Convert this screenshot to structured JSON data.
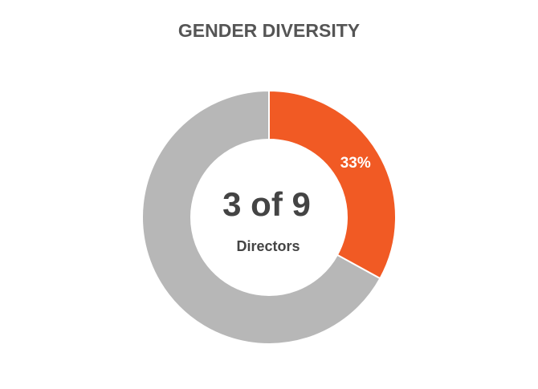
{
  "chart_data": {
    "type": "donut",
    "title": "GENDER DIVERSITY",
    "values": [
      33,
      67
    ],
    "value_labels": [
      "33%",
      null
    ],
    "colors": [
      "#f15a24",
      "#b7b7b7"
    ],
    "center_text": "3 of 9",
    "center_subtext": "Directors"
  }
}
